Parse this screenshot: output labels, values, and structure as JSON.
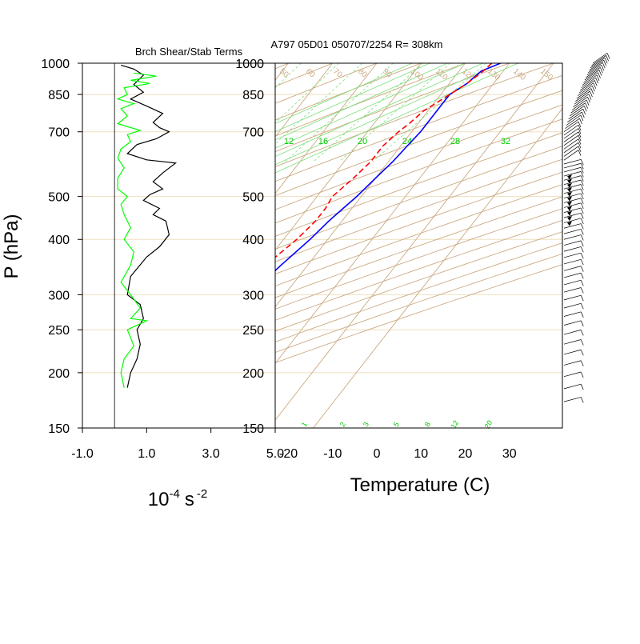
{
  "header": {
    "left_title": "Brch Shear/Stab Terms",
    "right_title": "A797 05D01 050707/2254 R= 308km"
  },
  "chart_data": [
    {
      "type": "line",
      "title": "Brch Shear/Stab Terms",
      "ylabel": "P (hPa)",
      "xlabel_base": "10",
      "xlabel_exp": "-4",
      "xlabel_unit": "s",
      "xlabel_unit_exp": "-2",
      "yscale": "log",
      "ylim": [
        1000,
        150
      ],
      "xlim": [
        -1.0,
        5.0
      ],
      "x_ticks": [
        "-1.0",
        "1.0",
        "3.0",
        "5.0"
      ],
      "y_ticks": [
        "150",
        "200",
        "250",
        "300",
        "400",
        "500",
        "700",
        "850",
        "1000"
      ],
      "series": [
        {
          "color": "#000000",
          "points": [
            [
              0.2,
              990
            ],
            [
              0.6,
              970
            ],
            [
              0.9,
              940
            ],
            [
              0.6,
              895
            ],
            [
              0.9,
              860
            ],
            [
              0.5,
              830
            ],
            [
              1.0,
              800
            ],
            [
              1.5,
              770
            ],
            [
              1.2,
              735
            ],
            [
              1.4,
              715
            ],
            [
              1.7,
              700
            ],
            [
              1.3,
              675
            ],
            [
              0.7,
              655
            ],
            [
              0.4,
              625
            ],
            [
              1.0,
              605
            ],
            [
              1.9,
              595
            ],
            [
              1.5,
              565
            ],
            [
              1.2,
              540
            ],
            [
              1.5,
              520
            ],
            [
              1.1,
              505
            ],
            [
              0.9,
              490
            ],
            [
              1.4,
              470
            ],
            [
              1.2,
              455
            ],
            [
              1.6,
              440
            ],
            [
              1.7,
              410
            ],
            [
              1.4,
              385
            ],
            [
              1.0,
              365
            ],
            [
              0.5,
              330
            ],
            [
              0.4,
              300
            ],
            [
              0.8,
              285
            ],
            [
              0.9,
              265
            ],
            [
              0.7,
              250
            ],
            [
              0.8,
              232
            ],
            [
              0.7,
              215
            ],
            [
              0.5,
              200
            ],
            [
              0.4,
              185
            ]
          ]
        },
        {
          "color": "#00ff00",
          "points": [
            [
              0.6,
              950
            ],
            [
              1.3,
              935
            ],
            [
              0.5,
              915
            ],
            [
              1.1,
              900
            ],
            [
              0.3,
              880
            ],
            [
              0.4,
              850
            ],
            [
              0.1,
              830
            ],
            [
              0.6,
              810
            ],
            [
              0.2,
              790
            ],
            [
              0.4,
              760
            ],
            [
              0.1,
              730
            ],
            [
              0.8,
              705
            ],
            [
              0.4,
              690
            ],
            [
              0.5,
              665
            ],
            [
              0.2,
              640
            ],
            [
              0.1,
              610
            ],
            [
              0.3,
              580
            ],
            [
              0.1,
              550
            ],
            [
              0.1,
              520
            ],
            [
              0.4,
              500
            ],
            [
              0.2,
              480
            ],
            [
              0.3,
              455
            ],
            [
              0.5,
              425
            ],
            [
              0.3,
              400
            ],
            [
              0.6,
              375
            ],
            [
              0.5,
              350
            ],
            [
              0.2,
              320
            ],
            [
              0.5,
              300
            ],
            [
              0.8,
              280
            ],
            [
              0.5,
              265
            ],
            [
              1.0,
              262
            ],
            [
              0.4,
              250
            ],
            [
              0.6,
              230
            ],
            [
              0.3,
              215
            ],
            [
              0.2,
              200
            ],
            [
              0.3,
              185
            ]
          ]
        }
      ]
    },
    {
      "type": "line",
      "title": "A797 05D01 050707/2254 R= 308km",
      "xlabel": "Temperature (C)",
      "yscale": "log",
      "ylim": [
        1000,
        150
      ],
      "xlim": [
        -23,
        42
      ],
      "x_ticks": [
        "-20",
        "-10",
        "0",
        "10",
        "20",
        "30"
      ],
      "y_ticks": [
        "150",
        "200",
        "250",
        "300",
        "400",
        "500",
        "700",
        "850",
        "1000"
      ],
      "isotherm_labels": [
        "50",
        "60",
        "70",
        "80",
        "90",
        "100",
        "110",
        "120",
        "130",
        "140",
        "150"
      ],
      "mixing_ratio_top_labels": [
        "12",
        "16",
        "20",
        "24",
        "28",
        "32"
      ],
      "mixing_ratio_bottom_labels": [
        "1",
        "2",
        "3",
        "5",
        "8",
        "12",
        "20"
      ],
      "series": [
        {
          "color": "#0000ff",
          "points": [
            [
              28,
              1000
            ],
            [
              25,
              960
            ],
            [
              24,
              900
            ],
            [
              22,
              850
            ],
            [
              22,
              800
            ],
            [
              22,
              750
            ],
            [
              22,
              700
            ],
            [
              21.5,
              650
            ],
            [
              21,
              600
            ],
            [
              20,
              550
            ],
            [
              19,
              500
            ],
            [
              18,
              470
            ],
            [
              17,
              440
            ],
            [
              16,
              400
            ],
            [
              14,
              350
            ],
            [
              12,
              300
            ],
            [
              9,
              250
            ],
            [
              6,
              210
            ],
            [
              3,
              180
            ]
          ]
        },
        {
          "color": "#ff0000",
          "dashed": true,
          "points": [
            [
              26,
              1000
            ],
            [
              25.5,
              960
            ],
            [
              24,
              900
            ],
            [
              22,
              850
            ],
            [
              19,
              780
            ],
            [
              18,
              730
            ],
            [
              17,
              700
            ],
            [
              16,
              650
            ],
            [
              16,
              600
            ],
            [
              15,
              550
            ],
            [
              13.5,
              500
            ],
            [
              14,
              470
            ],
            [
              14,
              440
            ],
            [
              13,
              400
            ],
            [
              10.5,
              350
            ],
            [
              8.5,
              300
            ],
            [
              5,
              250
            ],
            [
              0,
              210
            ],
            [
              -2,
              200
            ]
          ]
        }
      ]
    }
  ]
}
